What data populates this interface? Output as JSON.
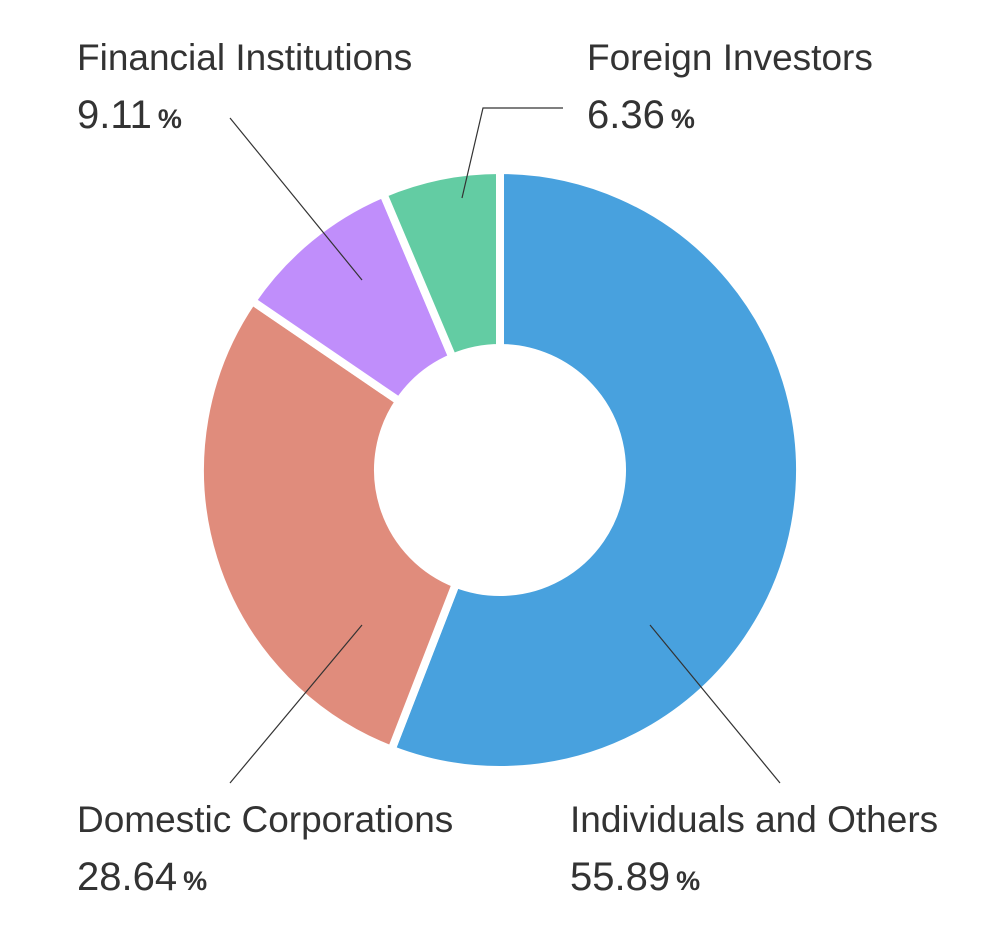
{
  "chart_data": {
    "type": "pie",
    "variant": "donut",
    "categories": [
      "Individuals and Others",
      "Domestic Corporations",
      "Financial Institutions",
      "Foreign Investors"
    ],
    "values": [
      55.89,
      28.64,
      9.11,
      6.36
    ],
    "value_suffix": "%",
    "colors": [
      "#48A1DE",
      "#E08C7C",
      "#C08EFB",
      "#63CCA3"
    ],
    "legend": "labels placed outside slices with leader lines"
  }
}
